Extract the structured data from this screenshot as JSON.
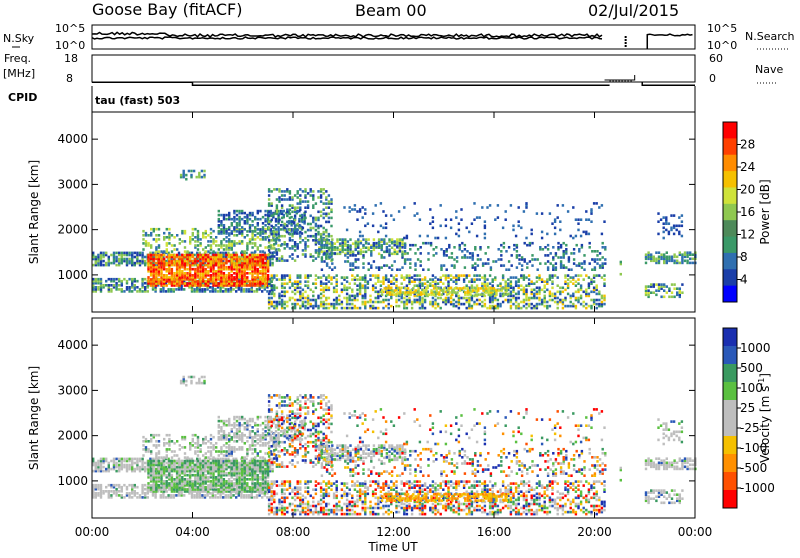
{
  "header": {
    "station": "Goose Bay (fitACF)",
    "beam": "Beam 00",
    "date": "02/Jul/2015"
  },
  "panel_labels": {
    "nsky": "N.Sky",
    "nsearch": "N.Search",
    "freq_top": "Freq.",
    "freq_unit": "[MHz]",
    "nave": "Nave",
    "cpid": "CPID",
    "cpid_value": "tau (fast) 503",
    "nsky_ticks": [
      "10^5",
      "10^0"
    ],
    "nsearch_ticks": [
      "10^5",
      "10^0"
    ],
    "freq_ticks": [
      "18",
      "8"
    ],
    "nave_ticks": [
      "60",
      "0"
    ]
  },
  "chart_data": [
    {
      "type": "line",
      "name": "noise-panel",
      "series": [
        {
          "name": "N.Sky",
          "description_level": "high",
          "gaps": [
            [
              "20:25",
              "21:55"
            ]
          ]
        },
        {
          "name": "N.Search",
          "description_level": "high"
        }
      ],
      "xlim": [
        "00:00",
        "24:00"
      ]
    },
    {
      "type": "line",
      "name": "frequency-nave-panel",
      "freq_ylim": [
        8,
        18
      ],
      "nave_ylim": [
        0,
        60
      ],
      "freq_value": 10.5,
      "nave_value": 5
    },
    {
      "type": "heatmap",
      "name": "power",
      "ylabel": "Slant Range [km]",
      "yticks": [
        "1000",
        "2000",
        "3000",
        "4000"
      ],
      "ylim": [
        180,
        4600
      ],
      "xlim": [
        "00:00",
        "24:00"
      ],
      "colorbar": {
        "label": "Power [dB]",
        "ticks": [
          "4",
          "8",
          "12",
          "16",
          "20",
          "24",
          "28"
        ],
        "colors": [
          "#0000ff",
          "#1a3ea8",
          "#2f6fb0",
          "#3a9968",
          "#4e8a5a",
          "#8fc850",
          "#cfe23a",
          "#f5c000",
          "#ff8c00",
          "#ff4000",
          "#ff0000"
        ]
      }
    },
    {
      "type": "heatmap",
      "name": "velocity",
      "ylabel": "Slant Range [km]",
      "yticks": [
        "1000",
        "2000",
        "3000",
        "4000"
      ],
      "ylim": [
        180,
        4600
      ],
      "xlim": [
        "00:00",
        "24:00"
      ],
      "xlabel": "Time UT",
      "xticks": [
        "00:00",
        "04:00",
        "08:00",
        "12:00",
        "16:00",
        "20:00",
        "00:00"
      ],
      "colorbar": {
        "label": "Velocity [m s",
        "label_sup": "-1",
        "label_end": "]",
        "ticks": [
          "1000",
          "500",
          "100",
          "25",
          "-25",
          "-100",
          "-500",
          "-1000"
        ],
        "colors": [
          "#1a2fb0",
          "#2a58b8",
          "#3a9a60",
          "#5ac040",
          "#bebebe",
          "#bebebe",
          "#f5c000",
          "#ff9000",
          "#ff5000",
          "#ff0000"
        ]
      }
    }
  ]
}
